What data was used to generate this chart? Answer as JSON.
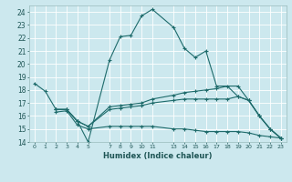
{
  "title": "",
  "xlabel": "Humidex (Indice chaleur)",
  "bg_color": "#cce8ee",
  "grid_color": "#ffffff",
  "line_color": "#1e6b6b",
  "xlim": [
    -0.5,
    23.5
  ],
  "ylim": [
    14,
    24.5
  ],
  "xticks": [
    0,
    1,
    2,
    3,
    4,
    5,
    7,
    8,
    9,
    10,
    11,
    13,
    14,
    15,
    16,
    17,
    18,
    19,
    20,
    21,
    22,
    23
  ],
  "yticks": [
    14,
    15,
    16,
    17,
    18,
    19,
    20,
    21,
    22,
    23,
    24
  ],
  "lx1": [
    0,
    1,
    2,
    3,
    4,
    5,
    7,
    8,
    9,
    10,
    11,
    13,
    14,
    15,
    16,
    17,
    19,
    20,
    21,
    22,
    23
  ],
  "ly1": [
    18.5,
    17.9,
    16.5,
    16.5,
    15.6,
    14.0,
    20.3,
    22.1,
    22.2,
    23.7,
    24.2,
    22.8,
    21.2,
    20.5,
    21.0,
    18.3,
    18.3,
    17.2,
    16.0,
    15.0,
    14.3
  ],
  "lx2": [
    2,
    3,
    4,
    5,
    7,
    8,
    9,
    10,
    11,
    13,
    14,
    15,
    16,
    17,
    18,
    19,
    20,
    21,
    22,
    23
  ],
  "ly2": [
    16.5,
    16.5,
    15.6,
    15.2,
    16.7,
    16.8,
    16.9,
    17.0,
    17.3,
    17.6,
    17.8,
    17.9,
    18.0,
    18.1,
    18.3,
    17.5,
    17.2,
    16.0,
    15.0,
    14.3
  ],
  "lx3": [
    2,
    3,
    4,
    5,
    7,
    8,
    9,
    10,
    11,
    13,
    14,
    15,
    16,
    17,
    18,
    19,
    20,
    21,
    22,
    23
  ],
  "ly3": [
    16.5,
    16.5,
    15.6,
    15.2,
    16.5,
    16.6,
    16.7,
    16.8,
    17.0,
    17.2,
    17.3,
    17.3,
    17.3,
    17.3,
    17.3,
    17.5,
    17.2,
    16.0,
    15.0,
    14.3
  ],
  "lx4": [
    2,
    3,
    4,
    5,
    7,
    8,
    9,
    10,
    11,
    13,
    14,
    15,
    16,
    17,
    18,
    19,
    20,
    21,
    22,
    23
  ],
  "ly4": [
    16.3,
    16.4,
    15.3,
    15.0,
    15.2,
    15.2,
    15.2,
    15.2,
    15.2,
    15.0,
    15.0,
    14.9,
    14.8,
    14.8,
    14.8,
    14.8,
    14.7,
    14.5,
    14.4,
    14.3
  ]
}
